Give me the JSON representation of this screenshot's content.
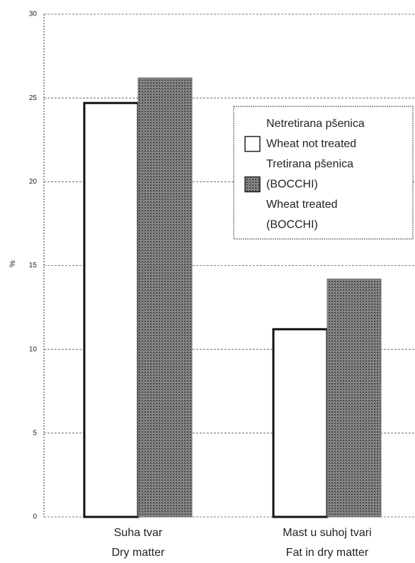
{
  "chart_data": {
    "type": "bar",
    "y_label": "%",
    "categories": [
      [
        "Suha tvar",
        "Dry matter"
      ],
      [
        "Mast u suhoj tvari",
        "Fat in dry matter"
      ]
    ],
    "series": [
      {
        "name": [
          "Netretirana pšenica",
          "Wheat not treated"
        ],
        "color": "#ffffff",
        "values": [
          24.7,
          11.2
        ]
      },
      {
        "name": [
          "Tretirana pšenica",
          "(BOCCHI)",
          "Wheat treated",
          "(BOCCHI)"
        ],
        "color": "#8a8a8a",
        "values": [
          26.2,
          14.2
        ]
      }
    ],
    "ylim": [
      0,
      30
    ],
    "yticks": [
      0,
      5,
      10,
      15,
      20,
      25,
      30
    ],
    "grid": true
  }
}
